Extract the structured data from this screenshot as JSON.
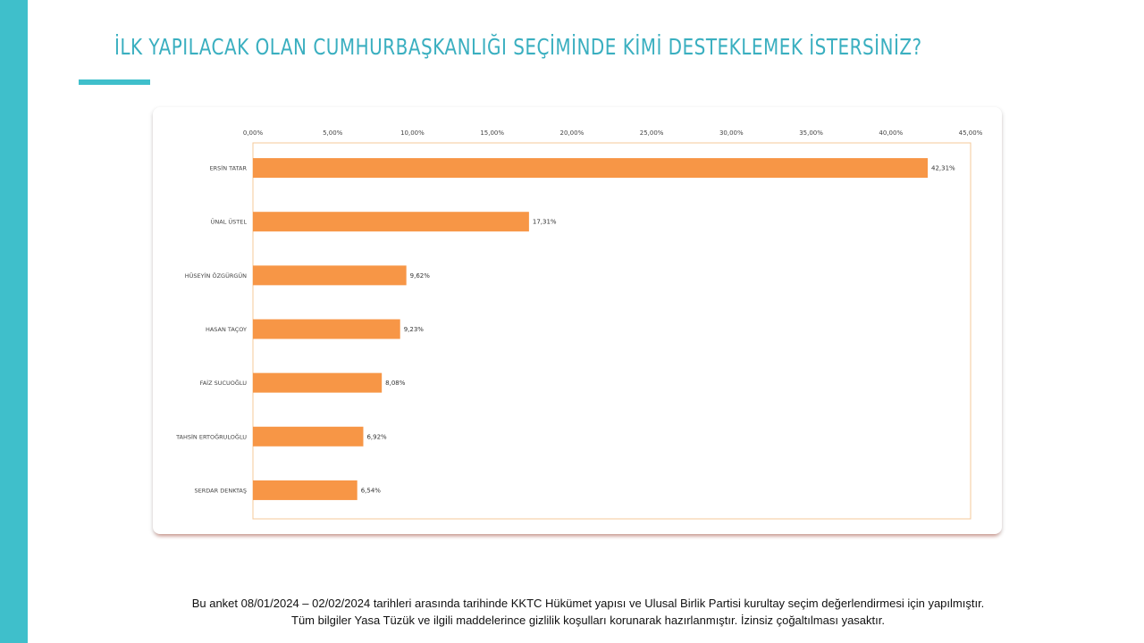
{
  "slide": {
    "title": "İLK YAPILACAK OLAN CUMHURBAŞKANLIĞI SEÇİMİNDE KİMİ DESTEKLEMEK İSTERSİNİZ?",
    "footer_line1": "Bu anket 08/01/2024 – 02/02/2024 tarihleri arasında tarihinde KKTC Hükümet yapısı ve Ulusal Birlik Partisi kurultay seçim değerlendirmesi için yapılmıştır.",
    "footer_line2": "Tüm bilgiler Yasa Tüzük ve ilgili maddelerince gizlilik koşulları korunarak hazırlanmıştır.  İzinsiz çoğaltılması yasaktır."
  },
  "colors": {
    "accent": "#3FBFCB",
    "title": "#3AAFC0",
    "bar": "#F79646",
    "plot_border": "#F4C89A"
  },
  "chart_data": {
    "type": "bar",
    "orientation": "horizontal",
    "title": "",
    "xlabel": "",
    "ylabel": "",
    "xlim": [
      0,
      45
    ],
    "x_axis_position": "top",
    "grid": false,
    "legend": "none",
    "tick_values": [
      0,
      5,
      10,
      15,
      20,
      25,
      30,
      35,
      40,
      45
    ],
    "tick_labels": [
      "0,00%",
      "5,00%",
      "10,00%",
      "15,00%",
      "20,00%",
      "25,00%",
      "30,00%",
      "35,00%",
      "40,00%",
      "45,00%"
    ],
    "categories": [
      "ERSİN TATAR",
      "ÜNAL ÜSTEL",
      "HÜSEYİN ÖZGÜRGÜN",
      "HASAN TAÇOY",
      "FAİZ SUCUOĞLU",
      "TAHSİN ERTOĞRULOĞLU",
      "SERDAR DENKTAŞ"
    ],
    "values": [
      42.31,
      17.31,
      9.62,
      9.23,
      8.08,
      6.92,
      6.54
    ],
    "value_labels": [
      "42,31%",
      "17,31%",
      "9,62%",
      "9,23%",
      "8,08%",
      "6,92%",
      "6,54%"
    ]
  }
}
